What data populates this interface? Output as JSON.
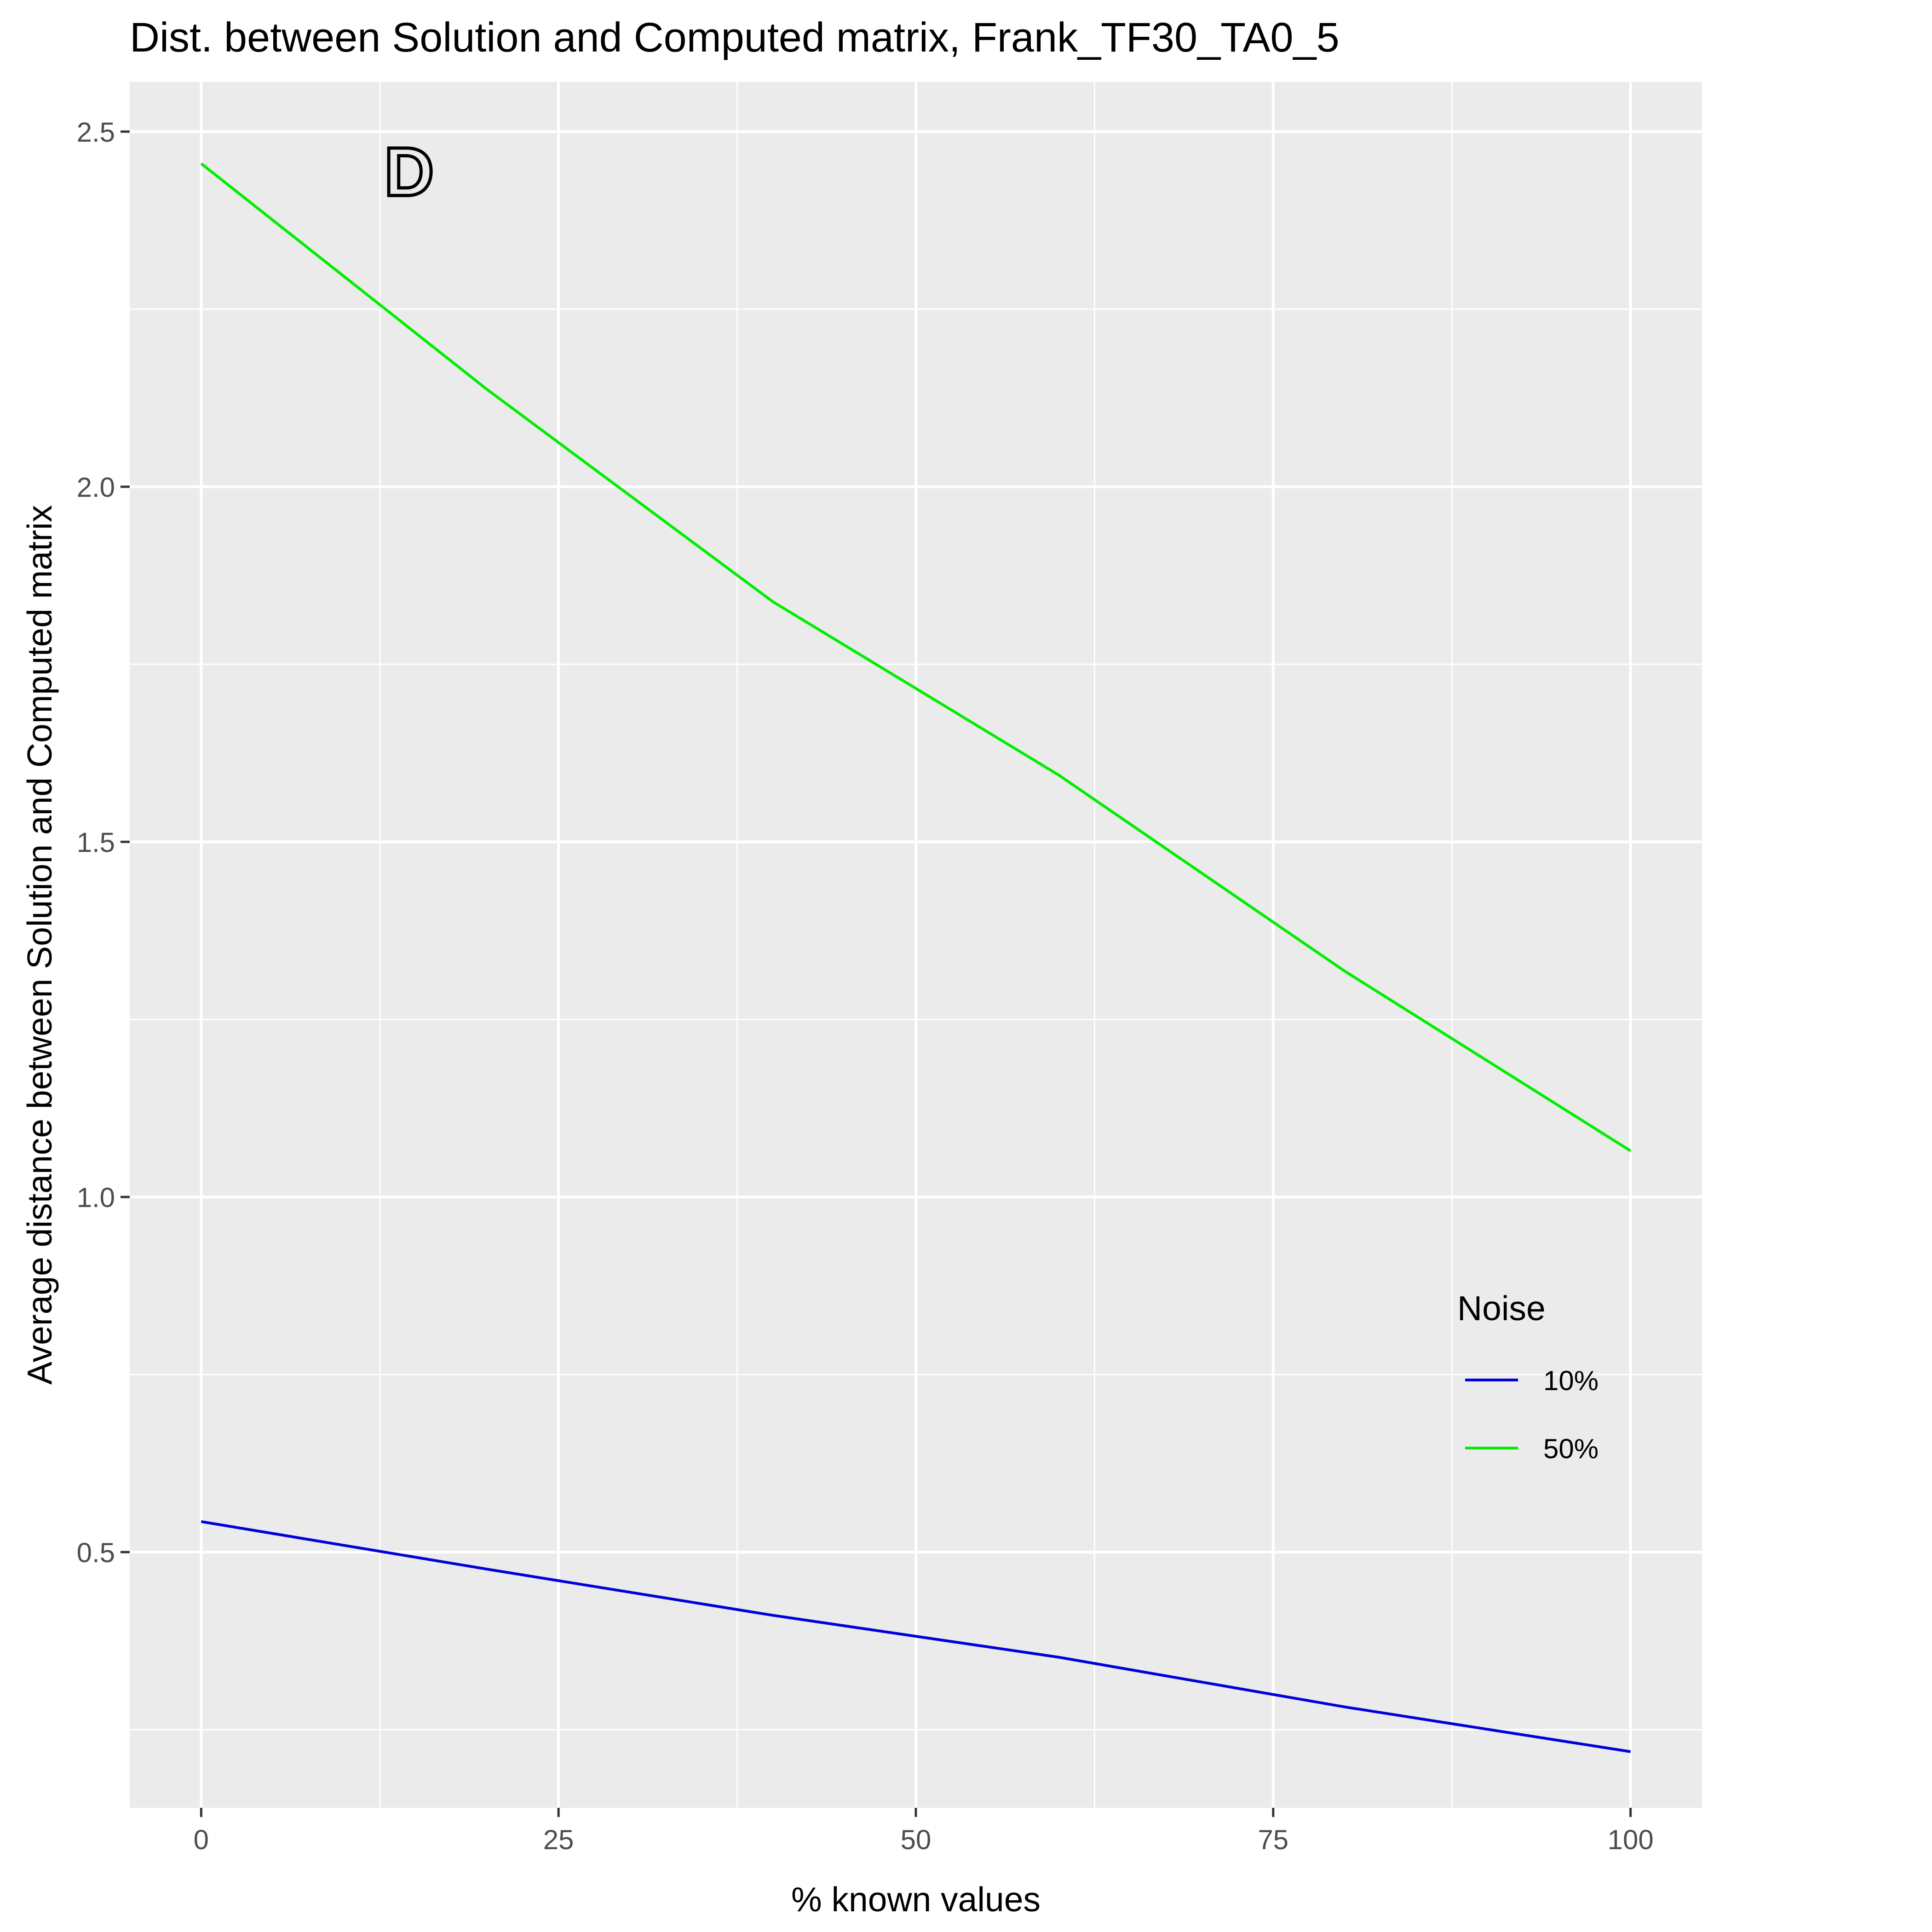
{
  "chart_data": {
    "type": "line",
    "title": "Dist. between Solution and Computed  matrix, Frank_TF30_TA0_5",
    "xlabel": "% known values",
    "ylabel": "Average distance between Solution and Computed  matrix",
    "panel_label": "D",
    "x": [
      0,
      20,
      40,
      60,
      80,
      100
    ],
    "xlim": [
      -5,
      105
    ],
    "ylim": [
      0.14,
      2.57
    ],
    "x_ticks": [
      0,
      25,
      50,
      75,
      100
    ],
    "x_tick_labels": [
      "0",
      "25",
      "50",
      "75",
      "100"
    ],
    "y_ticks": [
      0.5,
      1.0,
      1.5,
      2.0,
      2.5
    ],
    "y_tick_labels": [
      "0.5",
      "1.0",
      "1.5",
      "2.0",
      "2.5"
    ],
    "grid": true,
    "legend": {
      "title": "Noise",
      "position": "right"
    },
    "series": [
      {
        "name": "10%",
        "color": "#0000dd",
        "values": [
          0.543,
          0.476,
          0.411,
          0.352,
          0.282,
          0.219
        ]
      },
      {
        "name": "50%",
        "color": "#00ee00",
        "values": [
          2.455,
          2.137,
          1.838,
          1.594,
          1.318,
          1.065
        ]
      }
    ]
  }
}
